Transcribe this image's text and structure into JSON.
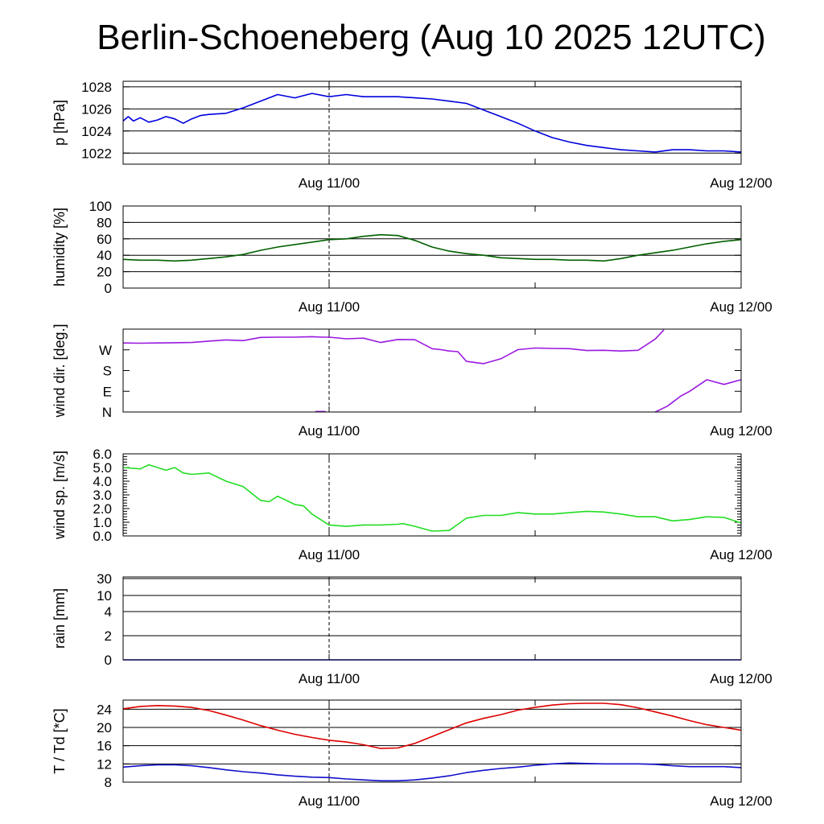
{
  "title": "Berlin-Schoeneberg (Aug 10 2025 12UTC)",
  "chart_data": [
    {
      "type": "line",
      "ylabel": "p [hPa]",
      "x_tick_labels": [
        "Aug 11/00",
        "Aug 12/00"
      ],
      "x_range_hours": [
        0,
        36
      ],
      "ylim": [
        1021,
        1028.5
      ],
      "y_ticks": [
        1022,
        1024,
        1026,
        1028
      ],
      "y_tick_labels": [
        "1022",
        "1024",
        "1026",
        "1028"
      ],
      "grid": true,
      "series": [
        {
          "color": "#0000dd",
          "x": [
            0,
            0.3,
            0.6,
            1.0,
            1.5,
            2.0,
            2.5,
            3.0,
            3.5,
            4.0,
            4.5,
            5.0,
            6,
            7,
            8,
            9,
            10,
            11,
            12,
            13,
            14,
            15,
            16,
            17,
            18,
            19,
            20,
            21,
            22,
            23,
            24,
            25,
            26,
            27,
            28,
            29,
            30,
            31,
            32,
            33,
            34,
            35,
            36
          ],
          "y": [
            1024.9,
            1025.3,
            1024.9,
            1025.2,
            1024.8,
            1025.0,
            1025.3,
            1025.1,
            1024.7,
            1025.1,
            1025.4,
            1025.5,
            1025.6,
            1026.1,
            1026.7,
            1027.3,
            1027.0,
            1027.4,
            1027.1,
            1027.3,
            1027.1,
            1027.1,
            1027.1,
            1027.0,
            1026.9,
            1026.7,
            1026.5,
            1025.9,
            1025.3,
            1024.7,
            1024.0,
            1023.4,
            1023.0,
            1022.7,
            1022.5,
            1022.3,
            1022.2,
            1022.1,
            1022.3,
            1022.3,
            1022.2,
            1022.2,
            1022.1
          ]
        }
      ]
    },
    {
      "type": "line",
      "ylabel": "humidity [%]",
      "x_tick_labels": [
        "Aug 11/00",
        "Aug 12/00"
      ],
      "x_range_hours": [
        0,
        36
      ],
      "ylim": [
        0,
        100
      ],
      "y_ticks": [
        0,
        20,
        40,
        60,
        80,
        100
      ],
      "y_tick_labels": [
        "0",
        "20",
        "40",
        "60",
        "80",
        "100"
      ],
      "grid": true,
      "series": [
        {
          "color": "#006000",
          "x": [
            0,
            1,
            2,
            3,
            4,
            5,
            6,
            7,
            8,
            9,
            10,
            11,
            12,
            13,
            14,
            15,
            16,
            17,
            18,
            19,
            20,
            21,
            22,
            23,
            24,
            25,
            26,
            27,
            28,
            29,
            30,
            31,
            32,
            33,
            34,
            35,
            36
          ],
          "y": [
            35,
            34,
            34,
            33,
            34,
            36,
            38,
            41,
            46,
            50,
            53,
            56,
            59,
            60,
            63,
            65,
            64,
            58,
            50,
            45,
            42,
            40,
            37,
            36,
            35,
            35,
            34,
            34,
            33,
            36,
            40,
            43,
            46,
            50,
            54,
            57,
            59
          ]
        }
      ]
    },
    {
      "type": "scatter",
      "ylabel": "wind dir. [deg.]",
      "x_tick_labels": [
        "Aug 11/00",
        "Aug 12/00"
      ],
      "x_range_hours": [
        0,
        36
      ],
      "ylim": [
        0,
        360
      ],
      "y_ticks": [
        0,
        90,
        180,
        270
      ],
      "y_tick_labels": [
        "N",
        "E",
        "S",
        "W"
      ],
      "grid": false,
      "series": [
        {
          "color": "#9a19e0",
          "x": [
            0,
            1,
            2,
            3,
            4,
            5,
            6,
            7,
            8,
            9,
            10,
            11,
            11.6,
            12,
            13,
            14,
            15,
            16,
            17,
            18,
            18.5,
            19,
            19.5,
            20,
            21,
            22,
            23,
            24,
            25,
            26,
            27,
            28,
            29,
            30,
            31,
            31.5
          ],
          "y": [
            300,
            299,
            300,
            301,
            302,
            308,
            313,
            310,
            324,
            325,
            325,
            327,
            325,
            325,
            318,
            321,
            302,
            315,
            314,
            275,
            271,
            265,
            262,
            220,
            210,
            231,
            271,
            278,
            276,
            275,
            267,
            268,
            265,
            268,
            317,
            357
          ]
        },
        {
          "color": "#9a19e0",
          "x": [
            11.2,
            11.8
          ],
          "y": [
            2,
            2
          ]
        },
        {
          "color": "#9a19e0",
          "x": [
            31.0,
            31.7,
            32.5,
            33.0,
            34.0,
            35.0,
            36.0
          ],
          "y": [
            0,
            25,
            70,
            90,
            140,
            120,
            140
          ]
        }
      ]
    },
    {
      "type": "line",
      "ylabel": "wind sp. [m/s]",
      "x_tick_labels": [
        "Aug 11/00",
        "Aug 12/00"
      ],
      "x_range_hours": [
        0,
        36
      ],
      "ylim": [
        0,
        6
      ],
      "y_ticks": [
        0,
        1,
        2,
        3,
        4,
        5,
        6
      ],
      "y_tick_labels": [
        "0.0",
        "1.0",
        "2.0",
        "3.0",
        "4.0",
        "5.0",
        "6.0"
      ],
      "grid": false,
      "series": [
        {
          "color": "#22dd22",
          "x": [
            0,
            1,
            1.5,
            2,
            2.5,
            3,
            3.5,
            4,
            5,
            6,
            7,
            8,
            8.5,
            9,
            10,
            10.5,
            11,
            12,
            13,
            14,
            15,
            16,
            16.3,
            17,
            18,
            19,
            20,
            21,
            22,
            23,
            24,
            25,
            26,
            27,
            28,
            29,
            30,
            31,
            32,
            33,
            34,
            35,
            36
          ],
          "y": [
            5.0,
            4.9,
            5.2,
            5.0,
            4.8,
            5.0,
            4.6,
            4.5,
            4.6,
            4.0,
            3.6,
            2.6,
            2.5,
            2.9,
            2.3,
            2.2,
            1.6,
            0.8,
            0.7,
            0.8,
            0.8,
            0.85,
            0.9,
            0.7,
            0.35,
            0.4,
            1.3,
            1.5,
            1.5,
            1.7,
            1.6,
            1.6,
            1.7,
            1.8,
            1.75,
            1.6,
            1.4,
            1.4,
            1.1,
            1.2,
            1.4,
            1.35,
            0.95
          ]
        }
      ]
    },
    {
      "type": "line",
      "ylabel": "rain [mm]",
      "x_tick_labels": [
        "Aug 11/00",
        "Aug 12/00"
      ],
      "x_range_hours": [
        0,
        36
      ],
      "ylim": [
        0,
        30
      ],
      "y_ticks": [
        0,
        2,
        4,
        10,
        30
      ],
      "y_tick_labels": [
        "0",
        "2",
        "4",
        "10",
        "30"
      ],
      "grid": true,
      "series": [
        {
          "color": "#0000dd",
          "x": [
            0,
            36
          ],
          "y": [
            0,
            0
          ]
        }
      ]
    },
    {
      "type": "line",
      "ylabel": "T / Td [*C]",
      "x_tick_labels": [
        "Aug 11/00",
        "Aug 12/00"
      ],
      "x_range_hours": [
        0,
        36
      ],
      "ylim": [
        8,
        26
      ],
      "y_ticks": [
        8,
        12,
        16,
        20,
        24
      ],
      "y_tick_labels": [
        "8",
        "12",
        "16",
        "20",
        "24"
      ],
      "grid": true,
      "series": [
        {
          "color": "#dd0000",
          "x": [
            0,
            1,
            2,
            3,
            4,
            5,
            6,
            7,
            8,
            9,
            10,
            11,
            12,
            13,
            14,
            15,
            16,
            17,
            18,
            19,
            20,
            21,
            22,
            23,
            24,
            25,
            26,
            27,
            28,
            29,
            30,
            31,
            32,
            33,
            34,
            35,
            36
          ],
          "y": [
            24.1,
            24.6,
            24.8,
            24.7,
            24.4,
            23.7,
            22.7,
            21.6,
            20.4,
            19.4,
            18.5,
            17.8,
            17.2,
            16.8,
            16.2,
            15.4,
            15.5,
            16.5,
            18.0,
            19.5,
            21.0,
            22.0,
            22.8,
            23.8,
            24.4,
            24.9,
            25.2,
            25.3,
            25.3,
            25.0,
            24.3,
            23.4,
            22.5,
            21.5,
            20.6,
            20.0,
            19.4
          ]
        },
        {
          "color": "#1010cc",
          "x": [
            0,
            1,
            2,
            3,
            4,
            5,
            6,
            7,
            8,
            9,
            10,
            11,
            12,
            13,
            14,
            15,
            16,
            17,
            18,
            19,
            20,
            21,
            22,
            23,
            24,
            25,
            26,
            27,
            28,
            29,
            30,
            31,
            32,
            33,
            34,
            35,
            36
          ],
          "y": [
            11.3,
            11.6,
            11.8,
            11.8,
            11.6,
            11.2,
            10.7,
            10.3,
            10.0,
            9.6,
            9.3,
            9.1,
            9.0,
            8.7,
            8.5,
            8.3,
            8.3,
            8.5,
            8.9,
            9.4,
            10.1,
            10.6,
            11.0,
            11.3,
            11.7,
            12.0,
            12.2,
            12.1,
            12.0,
            12.0,
            12.0,
            11.9,
            11.6,
            11.4,
            11.4,
            11.4,
            11.2
          ]
        }
      ]
    }
  ]
}
